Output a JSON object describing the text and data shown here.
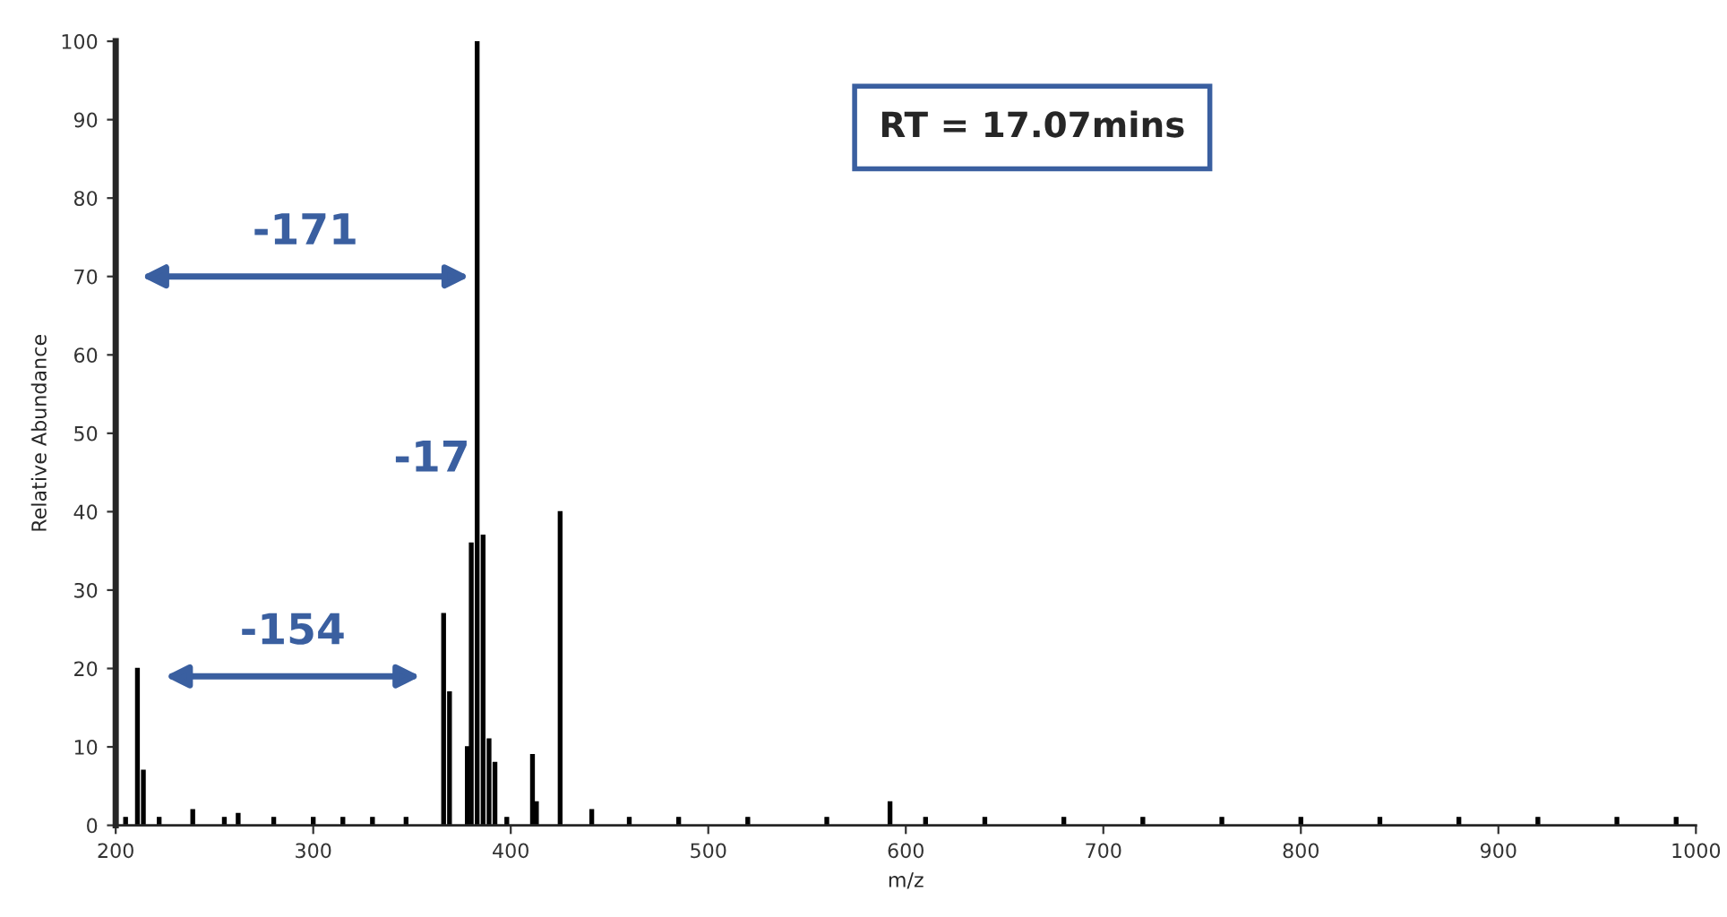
{
  "chart_data": {
    "type": "bar",
    "xlabel": "m/z",
    "ylabel": "Relative Abundance",
    "x": [
      205,
      211,
      214,
      222,
      239,
      255,
      262,
      280,
      300,
      315,
      330,
      347,
      366,
      369,
      378,
      380,
      383,
      386,
      389,
      392,
      398,
      411,
      413,
      425,
      441,
      460,
      485,
      520,
      560,
      592,
      610,
      640,
      680,
      720,
      760,
      800,
      840,
      880,
      920,
      960,
      990
    ],
    "values": [
      1,
      20,
      7,
      1,
      2,
      1,
      1.5,
      1,
      1,
      1,
      1,
      1,
      27,
      17,
      10,
      36,
      100,
      37,
      11,
      8,
      1,
      9,
      3,
      40,
      2,
      1,
      1,
      1,
      1,
      3,
      1,
      1,
      1,
      1,
      1,
      1,
      1,
      1,
      1,
      1,
      1
    ],
    "color": "#000000",
    "xlim": [
      200,
      1000
    ],
    "xticks": [
      200,
      300,
      400,
      500,
      600,
      700,
      800,
      900,
      1000
    ],
    "ylim": [
      0,
      100
    ],
    "yticks": [
      0,
      10,
      20,
      30,
      40,
      50,
      60,
      70,
      80,
      90,
      100
    ],
    "grid": false,
    "annotations": [
      "-171",
      "-154",
      "-17",
      "RT = 17.07mins"
    ]
  }
}
